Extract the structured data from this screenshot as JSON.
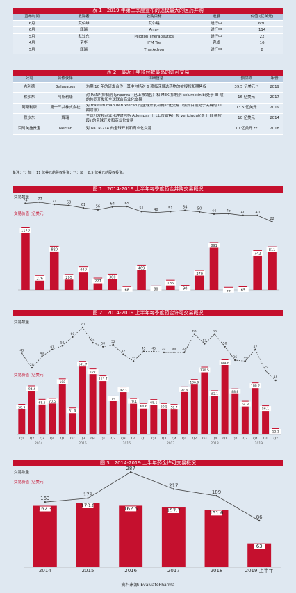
{
  "table1": {
    "title": "表 1　2019 年第二季度宣布的规模最大的医药并购",
    "headers": [
      "宣布时间",
      "收购者",
      "收购目标",
      "进展",
      "价值 (亿美元)"
    ],
    "rows": [
      [
        "6月",
        "艾伯维",
        "艾尔建",
        "进行中",
        "630"
      ],
      [
        "6月",
        "辉瑞",
        "Array",
        "进行中",
        "114"
      ],
      [
        "5月",
        "默沙东",
        "Peloton Therapeutics",
        "进行中",
        "22"
      ],
      [
        "4月",
        "诺华",
        "IFM Tre",
        "完成",
        "16"
      ],
      [
        "5月",
        "辉瑞",
        "TherAchon",
        "进行中",
        "8"
      ]
    ]
  },
  "table2": {
    "title": "表 2　最近十年预付款最高的许可交易",
    "headers": [
      "公司",
      "合作伙伴",
      "详细信息",
      "预付款",
      "年份"
    ],
    "rows": [
      [
        "吉利德",
        "Galapagos",
        "为期 10 年的研发合作，其中包括对 6 项临床候选药物的被授权和期售权",
        "39.5 亿美元 *",
        "2019"
      ],
      [
        "默沙东",
        "阿斯利康",
        "对 PARP 抑制剂 lynparza（已上市销售）和 MEK 抑制剂 selumetinib(处于 III 期) 的共同开发和全球联合商业化交易",
        "16 亿美元",
        "2017"
      ],
      [
        "阿斯利康",
        "第一三共株式会社",
        "对 trastuzumab deruxtecan 的全球开发和商业化交易（该药目前处于关键的 III 期阶段）",
        "13.5 亿美元",
        "2019"
      ],
      [
        "默沙东",
        "辉瑞",
        "全球开发和商业化理财包括 Adempas（已上市销售）和 vericiguat(处于 III 期阶段) 的全球开发和商业化交易",
        "10 亿美元",
        "2014"
      ],
      [
        "百时美施贵宝",
        "Nektar",
        "对 NKTR-214 的全球开发和商业化交易",
        "10 亿美元 **",
        "2018"
      ]
    ],
    "note": "备注：*：加上 11 亿美元的股权投资；**：加上 8.5 亿美元的股权投资。"
  },
  "figure1": {
    "title": "图 1　2014-2019 上半年每季度药企并购交易概况",
    "count_label": "交易数量",
    "value_label": "交易价值 (亿美元)",
    "chart_data": {
      "type": "bar",
      "series": [
        {
          "name": "交易价值",
          "values": [
            1170,
            276,
            820,
            295,
            440,
            227,
            300,
            68,
            469,
            80,
            186,
            90,
            370,
            891,
            55,
            65,
            742,
            811
          ]
        },
        {
          "name": "交易数量",
          "values": [
            74,
            77,
            71,
            68,
            61,
            56,
            64,
            65,
            51,
            48,
            51,
            54,
            50,
            44,
            45,
            40,
            40,
            22
          ]
        }
      ]
    }
  },
  "figure2": {
    "title": "图 2　2014-2019 上半年每季度药企许可交易概况",
    "count_label": "交易数量",
    "value_label": "交易价值 (亿美元)",
    "chart_data": {
      "type": "bar",
      "categories": [
        "Q1",
        "Q2",
        "Q3",
        "Q4",
        "Q1",
        "Q2",
        "Q3",
        "Q4",
        "Q1",
        "Q2",
        "Q3",
        "Q4",
        "Q1",
        "Q2",
        "Q3",
        "Q4",
        "Q1",
        "Q2",
        "Q3",
        "Q4",
        "Q1",
        "Q2",
        "Q3",
        "Q4",
        "Q1",
        "Q2"
      ],
      "series": [
        {
          "name": "交易价值",
          "values": [
            58.9,
            94.4,
            68.5,
            70.5,
            108,
            51.9,
            141.7,
            127,
            113.7,
            75,
            92.3,
            70.1,
            60.6,
            68.1,
            60.5,
            58.7,
            92.6,
            106.9,
            130.5,
            85.1,
            144.6,
            88.8,
            64.8,
            100.2,
            56.1,
            12.1
          ]
        },
        {
          "name": "交易数量",
          "values": [
            43,
            28,
            40,
            47,
            51,
            60,
            70,
            54,
            50,
            52,
            42,
            35,
            45,
            45,
            44,
            44,
            44,
            63,
            53,
            63,
            50,
            36,
            35,
            47,
            25,
            15
          ]
        }
      ],
      "years": [
        "2014",
        "2015",
        "2016",
        "2017",
        "2018",
        "2019"
      ]
    }
  },
  "figure3": {
    "title": "图 3　2014-2019 上半年药企许可交易概况",
    "count_label": "交易数量",
    "value_label": "交易价值 (亿美元)",
    "chart_data": {
      "type": "bar",
      "categories": [
        "2014",
        "2015",
        "2016",
        "2017",
        "2018",
        "2019 上半年"
      ],
      "series": [
        {
          "name": "交易价值",
          "values": [
            162.3,
            170.6,
            162.5,
            157.7,
            151.6,
            63
          ]
        },
        {
          "name": "交易数量",
          "values": [
            163,
            179,
            287,
            217,
            189,
            86
          ]
        }
      ]
    }
  },
  "source": "资料来源: EvaluatePharma"
}
